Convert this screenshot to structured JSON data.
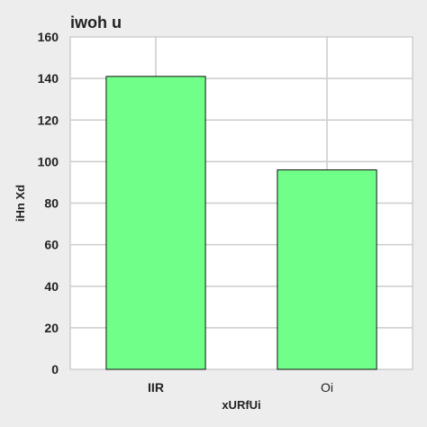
{
  "chart_data": {
    "type": "bar",
    "title": "iwoh u",
    "xlabel": "xURfUi",
    "ylabel": "iHn Xd",
    "categories": [
      "IIR",
      "Oi"
    ],
    "values": [
      141,
      96
    ],
    "ylim": [
      0,
      160
    ],
    "yticks": [
      0,
      20,
      40,
      60,
      80,
      100,
      120,
      140,
      160
    ],
    "grid": true,
    "bar_color": "#70ff88",
    "bar_edge_color": "#111111",
    "plot_background": "#ffffff",
    "grid_color": "#cccccc"
  }
}
